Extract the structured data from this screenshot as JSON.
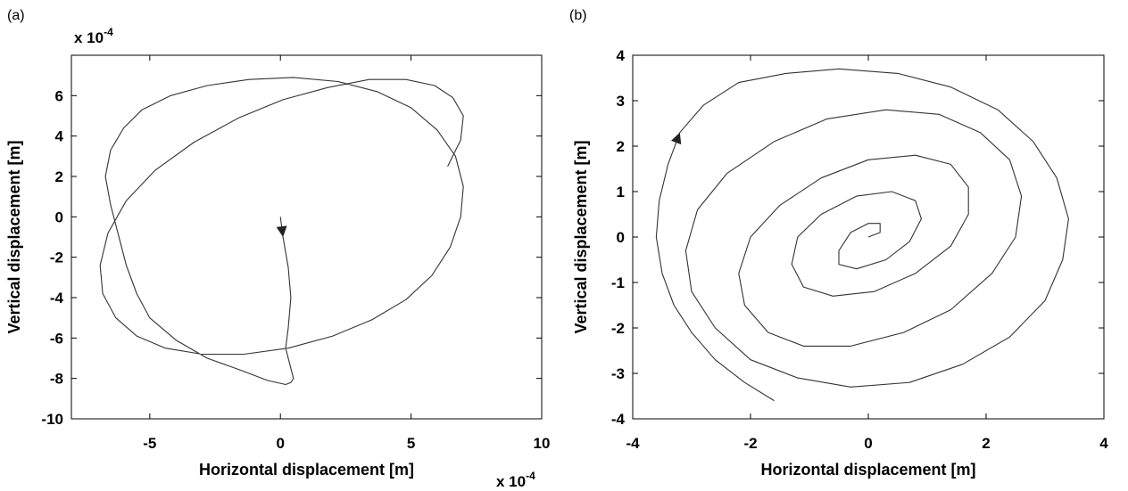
{
  "chart_data": [
    {
      "type": "line",
      "panel_label": "(a)",
      "xlabel": "Horizontal displacement [m]",
      "ylabel": "Vertical displacement [m]",
      "x_multiplier": "x 10",
      "x_multiplier_exp": "-4",
      "y_multiplier": "x 10",
      "y_multiplier_exp": "-4",
      "xlim": [
        -8,
        10
      ],
      "ylim": [
        -10,
        8
      ],
      "xticks": [
        -5,
        0,
        5,
        10
      ],
      "yticks": [
        -10,
        -8,
        -6,
        -4,
        -2,
        0,
        2,
        4,
        6
      ],
      "grid": false,
      "series": [
        {
          "description_kind": "trajectory",
          "x": [
            0.0,
            0.1,
            0.3,
            0.4,
            0.3,
            0.2,
            0.4,
            0.5,
            0.4,
            0.2,
            -0.5,
            -1.5,
            -2.8,
            -4.0,
            -5.0,
            -5.5,
            -5.9,
            -6.2,
            -6.5,
            -6.7,
            -6.5,
            -6.0,
            -5.3,
            -4.2,
            -2.8,
            -1.2,
            0.5,
            2.2,
            3.7,
            5.0,
            6.0,
            6.7,
            7.0,
            6.9,
            6.5,
            5.8,
            4.8,
            3.5,
            2.0,
            0.3,
            -1.4,
            -3.0,
            -4.4,
            -5.5,
            -6.3,
            -6.8,
            -6.9,
            -6.6,
            -5.9,
            -4.8,
            -3.3,
            -1.6,
            0.1,
            1.8,
            3.4,
            4.8,
            5.9,
            6.6,
            7.0,
            6.9,
            6.4
          ],
          "y": [
            0.0,
            -1.0,
            -2.5,
            -4.0,
            -5.5,
            -6.5,
            -7.5,
            -8.0,
            -8.2,
            -8.3,
            -8.1,
            -7.6,
            -7.0,
            -6.1,
            -5.0,
            -3.8,
            -2.4,
            -0.9,
            0.6,
            2.0,
            3.3,
            4.4,
            5.3,
            6.0,
            6.5,
            6.8,
            6.9,
            6.7,
            6.2,
            5.4,
            4.3,
            3.0,
            1.5,
            0.0,
            -1.5,
            -2.9,
            -4.1,
            -5.1,
            -5.9,
            -6.5,
            -6.8,
            -6.8,
            -6.5,
            -5.9,
            -5.0,
            -3.8,
            -2.4,
            -0.8,
            0.8,
            2.3,
            3.7,
            4.9,
            5.8,
            6.4,
            6.8,
            6.8,
            6.5,
            5.9,
            5.0,
            3.8,
            2.5
          ]
        }
      ]
    },
    {
      "type": "line",
      "panel_label": "(b)",
      "xlabel": "Horizontal displacement [m]",
      "ylabel": "Vertical displacement [m]",
      "xlim": [
        -4,
        4
      ],
      "ylim": [
        -4,
        4
      ],
      "xticks": [
        -4,
        -2,
        0,
        2,
        4
      ],
      "yticks": [
        -4,
        -3,
        -2,
        -1,
        0,
        1,
        2,
        3,
        4
      ],
      "grid": false,
      "series": [
        {
          "description_kind": "spiral trajectory",
          "x": [
            -1.6,
            -2.1,
            -2.6,
            -3.0,
            -3.3,
            -3.5,
            -3.6,
            -3.55,
            -3.4,
            -3.2,
            -2.8,
            -2.2,
            -1.4,
            -0.5,
            0.5,
            1.4,
            2.2,
            2.8,
            3.2,
            3.4,
            3.3,
            3.0,
            2.4,
            1.6,
            0.7,
            -0.3,
            -1.2,
            -2.0,
            -2.6,
            -3.0,
            -3.1,
            -2.9,
            -2.4,
            -1.6,
            -0.7,
            0.3,
            1.2,
            1.9,
            2.4,
            2.6,
            2.5,
            2.1,
            1.4,
            0.6,
            -0.3,
            -1.1,
            -1.7,
            -2.1,
            -2.2,
            -2.0,
            -1.5,
            -0.8,
            0.0,
            0.8,
            1.4,
            1.7,
            1.7,
            1.4,
            0.8,
            0.1,
            -0.6,
            -1.1,
            -1.3,
            -1.2,
            -0.8,
            -0.2,
            0.4,
            0.8,
            0.9,
            0.7,
            0.3,
            -0.2,
            -0.5,
            -0.5,
            -0.3,
            0.0,
            0.2,
            0.2,
            0.0
          ],
          "y": [
            -3.6,
            -3.2,
            -2.7,
            -2.1,
            -1.5,
            -0.8,
            0.0,
            0.8,
            1.6,
            2.3,
            2.9,
            3.4,
            3.6,
            3.7,
            3.6,
            3.3,
            2.8,
            2.1,
            1.3,
            0.4,
            -0.5,
            -1.4,
            -2.2,
            -2.8,
            -3.2,
            -3.3,
            -3.1,
            -2.7,
            -2.0,
            -1.2,
            -0.3,
            0.6,
            1.4,
            2.1,
            2.6,
            2.8,
            2.7,
            2.3,
            1.7,
            0.9,
            0.0,
            -0.8,
            -1.6,
            -2.1,
            -2.4,
            -2.4,
            -2.1,
            -1.5,
            -0.8,
            0.0,
            0.7,
            1.3,
            1.7,
            1.8,
            1.6,
            1.1,
            0.5,
            -0.2,
            -0.8,
            -1.2,
            -1.3,
            -1.1,
            -0.6,
            0.0,
            0.5,
            0.9,
            1.0,
            0.8,
            0.4,
            -0.1,
            -0.5,
            -0.7,
            -0.6,
            -0.3,
            0.1,
            0.3,
            0.3,
            0.1,
            0.0
          ]
        }
      ]
    }
  ]
}
